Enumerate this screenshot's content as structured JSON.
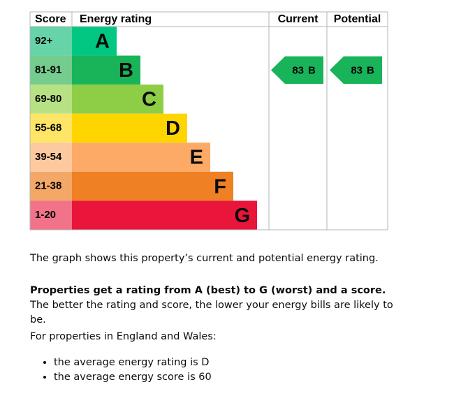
{
  "chart": {
    "headers": {
      "score": "Score",
      "rating": "Energy rating",
      "current": "Current",
      "potential": "Potential"
    },
    "bands": [
      {
        "score": "92+",
        "letter": "A",
        "color": "#00c781",
        "light": "#66d3a8"
      },
      {
        "score": "81-91",
        "letter": "B",
        "color": "#19b459",
        "light": "#74cc8e"
      },
      {
        "score": "69-80",
        "letter": "C",
        "color": "#8dce46",
        "light": "#b8e184"
      },
      {
        "score": "55-68",
        "letter": "D",
        "color": "#ffd500",
        "light": "#ffe566"
      },
      {
        "score": "39-54",
        "letter": "E",
        "color": "#fcaa65",
        "light": "#fdcaa0"
      },
      {
        "score": "21-38",
        "letter": "F",
        "color": "#ef8023",
        "light": "#f4a868"
      },
      {
        "score": "1-20",
        "letter": "G",
        "color": "#e9153b",
        "light": "#f27389"
      }
    ],
    "current": {
      "score": 83,
      "letter": "B"
    },
    "potential": {
      "score": 83,
      "letter": "B"
    }
  },
  "text": {
    "intro": "The graph shows this property’s current and potential energy rating.",
    "rating_bold": "Properties get a rating from A (best) to G (worst) and a score.",
    "rating_rest": " The better the rating and score, the lower your energy bills are likely to be.",
    "region": "For properties in England and Wales:",
    "bullets": [
      "the average energy rating is D",
      "the average energy score is 60"
    ]
  }
}
